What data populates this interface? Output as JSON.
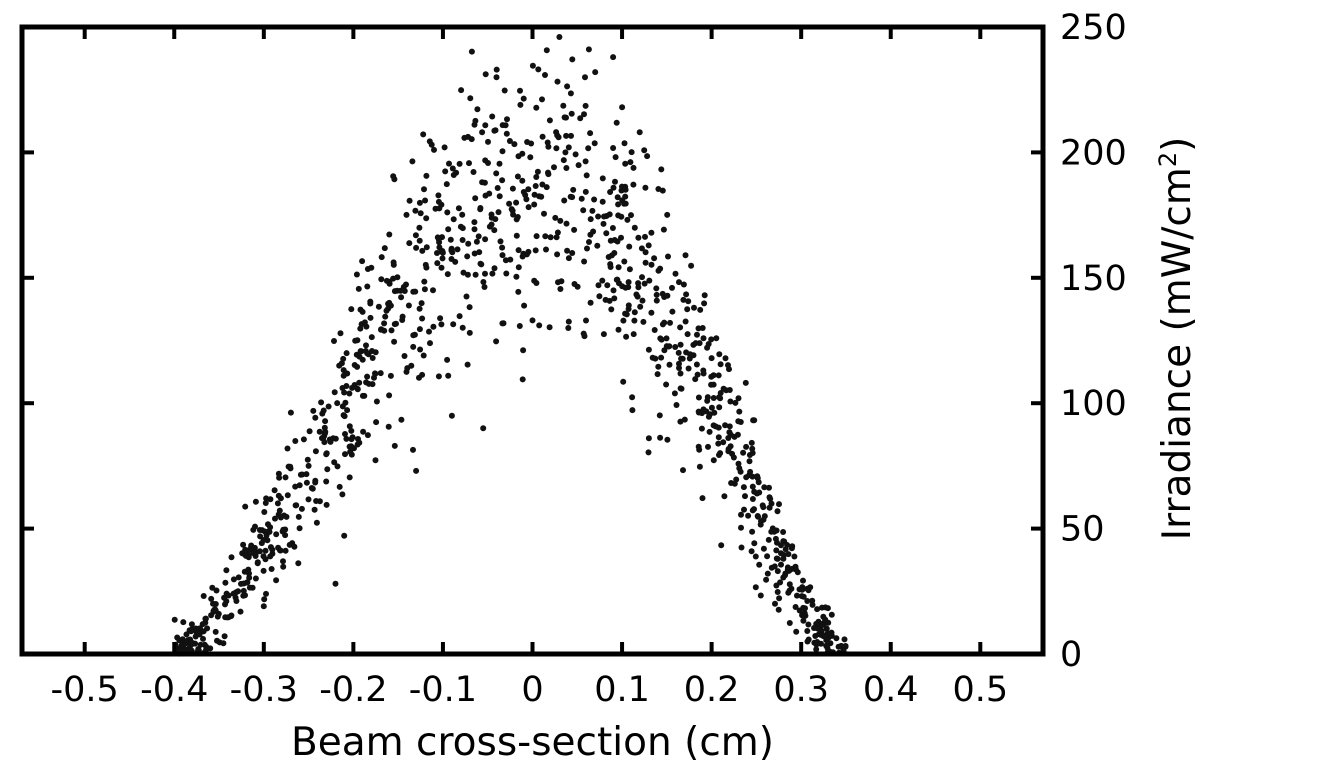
{
  "chart_data": {
    "type": "scatter",
    "xlabel": "Beam cross-section (cm)",
    "ylabel": "Irradiance (mW/cm",
    "ylabel_sup": "2",
    "ylabel_close": ")",
    "xlim": [
      -0.57,
      0.57
    ],
    "ylim": [
      0,
      250
    ],
    "x_ticks": [
      -0.5,
      -0.4,
      -0.3,
      -0.2,
      -0.1,
      0,
      0.1,
      0.2,
      0.3,
      0.4,
      0.5
    ],
    "x_tick_labels": [
      "-0.5",
      "-0.4",
      "-0.3",
      "-0.2",
      "-0.1",
      "0",
      "0.1",
      "0.2",
      "0.3",
      "0.4",
      "0.5"
    ],
    "y_ticks": [
      0,
      50,
      100,
      150,
      200,
      250
    ],
    "y_tick_labels": [
      "0",
      "50",
      "100",
      "150",
      "200",
      "250"
    ],
    "y_axis_side": "right",
    "grid": false,
    "marker_color": "#111111",
    "distribution": {
      "shape": "noisy peaked profile centred at x=0.02 cm",
      "peak_value": 185,
      "x_extent": [
        -0.4,
        0.35
      ],
      "n_points": 1150,
      "seed": 12345
    },
    "highlighted_points": [
      {
        "x": 0.03,
        "y": 246
      },
      {
        "x": 0.09,
        "y": 238
      },
      {
        "x": -0.04,
        "y": 233
      },
      {
        "x": 0.07,
        "y": 232
      },
      {
        "x": 0.1,
        "y": 218
      },
      {
        "x": -0.11,
        "y": 201
      },
      {
        "x": -0.18,
        "y": 154
      },
      {
        "x": -0.09,
        "y": 95
      },
      {
        "x": -0.055,
        "y": 90
      },
      {
        "x": -0.13,
        "y": 73
      },
      {
        "x": -0.1,
        "y": 160
      },
      {
        "x": 0.0,
        "y": 133
      },
      {
        "x": 0.04,
        "y": 130
      },
      {
        "x": 0.13,
        "y": 86
      },
      {
        "x": 0.11,
        "y": 175
      },
      {
        "x": -0.16,
        "y": 140
      },
      {
        "x": 0.2,
        "y": 118
      },
      {
        "x": 0.19,
        "y": 130
      },
      {
        "x": 0.23,
        "y": 102
      },
      {
        "x": 0.28,
        "y": 45
      },
      {
        "x": 0.29,
        "y": 43
      },
      {
        "x": -0.25,
        "y": 75
      },
      {
        "x": -0.22,
        "y": 28
      },
      {
        "x": -0.3,
        "y": 19
      }
    ]
  }
}
